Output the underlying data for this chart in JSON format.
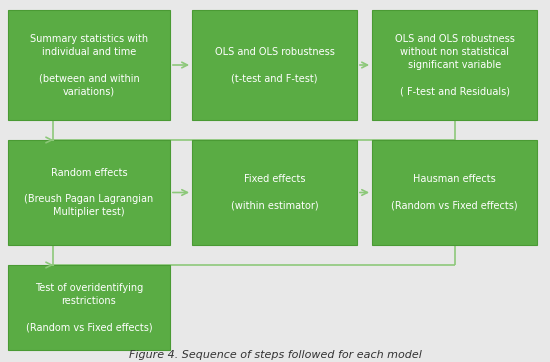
{
  "background_color": "#e8e8e8",
  "box_color": "#5aac44",
  "box_edge_color": "#4a9a34",
  "text_color": "white",
  "arrow_color": "#8dc87a",
  "boxes": [
    {
      "id": "A",
      "text": "Summary statistics with\nindividual and time\n\n(between and within\nvariations)"
    },
    {
      "id": "B",
      "text": "OLS and OLS robustness\n\n(t-test and F-test)"
    },
    {
      "id": "C",
      "text": "OLS and OLS robustness\nwithout non statistical\nsignificant variable\n\n( F-test and Residuals)"
    },
    {
      "id": "D",
      "text": "Random effects\n\n(Breush Pagan Lagrangian\nMultiplier test)"
    },
    {
      "id": "E",
      "text": "Fixed effects\n\n(within estimator)"
    },
    {
      "id": "F",
      "text": "Hausman effects\n\n(Random vs Fixed effects)"
    },
    {
      "id": "G",
      "text": "Test of overidentifying\nrestrictions\n\n(Random vs Fixed effects)"
    }
  ],
  "title": "Figure 4. Sequence of steps followed for each model",
  "title_fontsize": 8,
  "text_fontsize": 7,
  "fig_width": 5.5,
  "fig_height": 3.62
}
